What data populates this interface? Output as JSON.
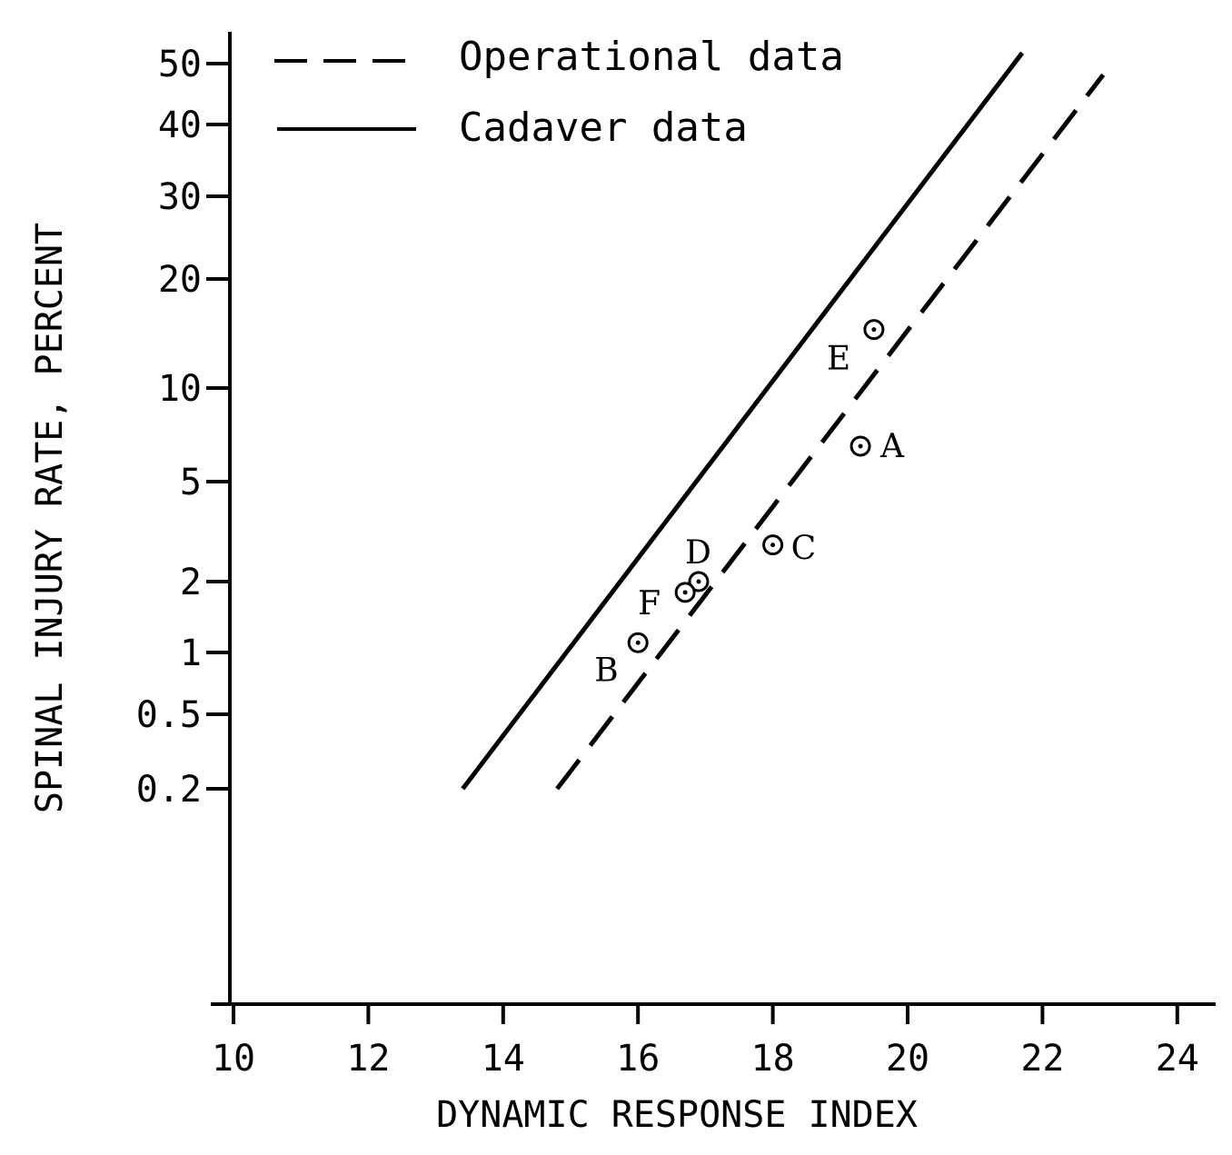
{
  "chart_data": {
    "type": "line",
    "title": "",
    "xlabel": "DYNAMIC RESPONSE INDEX",
    "ylabel": "SPINAL INJURY RATE, PERCENT",
    "x_ticks": [
      "10",
      "12",
      "14",
      "16",
      "18",
      "20",
      "22",
      "24"
    ],
    "y_ticks": [
      "0.2",
      "0.5",
      "1",
      "2",
      "5",
      "10",
      "20",
      "30",
      "40",
      "50"
    ],
    "xlim": [
      10,
      24
    ],
    "y_scale": "log",
    "legend_position": "top-left",
    "grid": false,
    "series": [
      {
        "name": "Operational data",
        "style": "dashed",
        "x": [
          14.8,
          22.9
        ],
        "y": [
          0.2,
          48
        ]
      },
      {
        "name": "Cadaver data",
        "style": "solid",
        "x": [
          13.4,
          21.7
        ],
        "y": [
          0.2,
          52
        ]
      }
    ],
    "points": [
      {
        "label": "A",
        "x": 19.3,
        "y": 6.5
      },
      {
        "label": "B",
        "x": 16.0,
        "y": 1.1
      },
      {
        "label": "C",
        "x": 18.0,
        "y": 2.8
      },
      {
        "label": "D",
        "x": 16.9,
        "y": 2.0
      },
      {
        "label": "E",
        "x": 19.5,
        "y": 14.5
      },
      {
        "label": "F",
        "x": 16.7,
        "y": 1.8
      }
    ]
  }
}
